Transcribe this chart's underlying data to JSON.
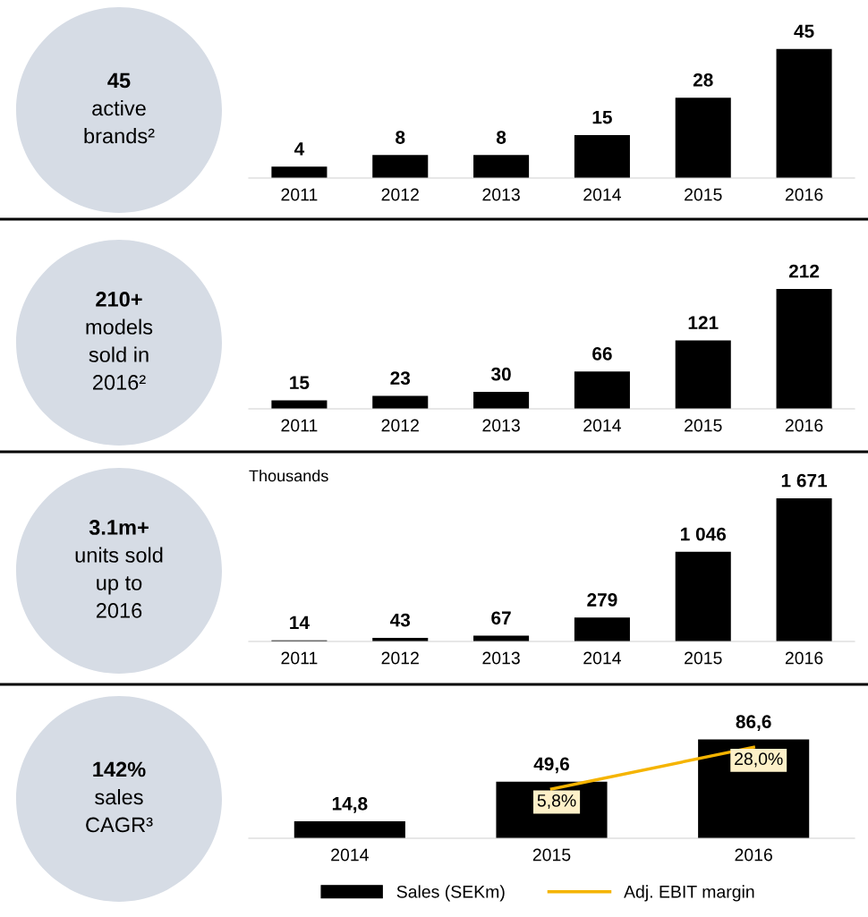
{
  "chart_data": [
    {
      "type": "bar",
      "categories": [
        "2011",
        "2012",
        "2013",
        "2014",
        "2015",
        "2016"
      ],
      "values": [
        4,
        8,
        8,
        15,
        28,
        45
      ],
      "color": "#000000",
      "data_labels": true,
      "tick_labels": "x",
      "annotations": [
        "45",
        "active\nbrands²"
      ]
    },
    {
      "type": "bar",
      "categories": [
        "2011",
        "2012",
        "2013",
        "2014",
        "2015",
        "2016"
      ],
      "values": [
        15,
        23,
        30,
        66,
        121,
        212
      ],
      "color": "#000000",
      "data_labels": true,
      "tick_labels": "x",
      "annotations": [
        "210+",
        "models\nsold in\n2016²"
      ]
    },
    {
      "type": "bar",
      "ylabel": "Thousands",
      "categories": [
        "2011",
        "2012",
        "2013",
        "2014",
        "2015",
        "2016"
      ],
      "values": [
        14,
        43,
        67,
        279,
        1046,
        1671
      ],
      "value_labels": [
        "14",
        "43",
        "67",
        "279",
        "1 046",
        "1 671"
      ],
      "color": "#000000",
      "tick_labels": "x",
      "annotations": [
        "3.1m+",
        "units sold\nup to\n2016"
      ]
    },
    {
      "type": "bar",
      "categories": [
        "2014",
        "2015",
        "2016"
      ],
      "tick_labels": "x",
      "legend": "bottom",
      "annotations": [
        "142%",
        "sales\nCAGR³"
      ],
      "series": [
        {
          "name": "Sales (SEKm)",
          "color": "#000000",
          "values": [
            14.8,
            49.6,
            86.6
          ],
          "value_labels": [
            "14,8",
            "49,6",
            "86,6"
          ]
        },
        {
          "name": "Adj. EBIT margin",
          "type": "line",
          "axis": "y2",
          "color": "#f5b400",
          "values": [
            null,
            5.8,
            28.0
          ],
          "value_labels": [
            null,
            "5,8%",
            "28,0%"
          ]
        }
      ]
    }
  ]
}
